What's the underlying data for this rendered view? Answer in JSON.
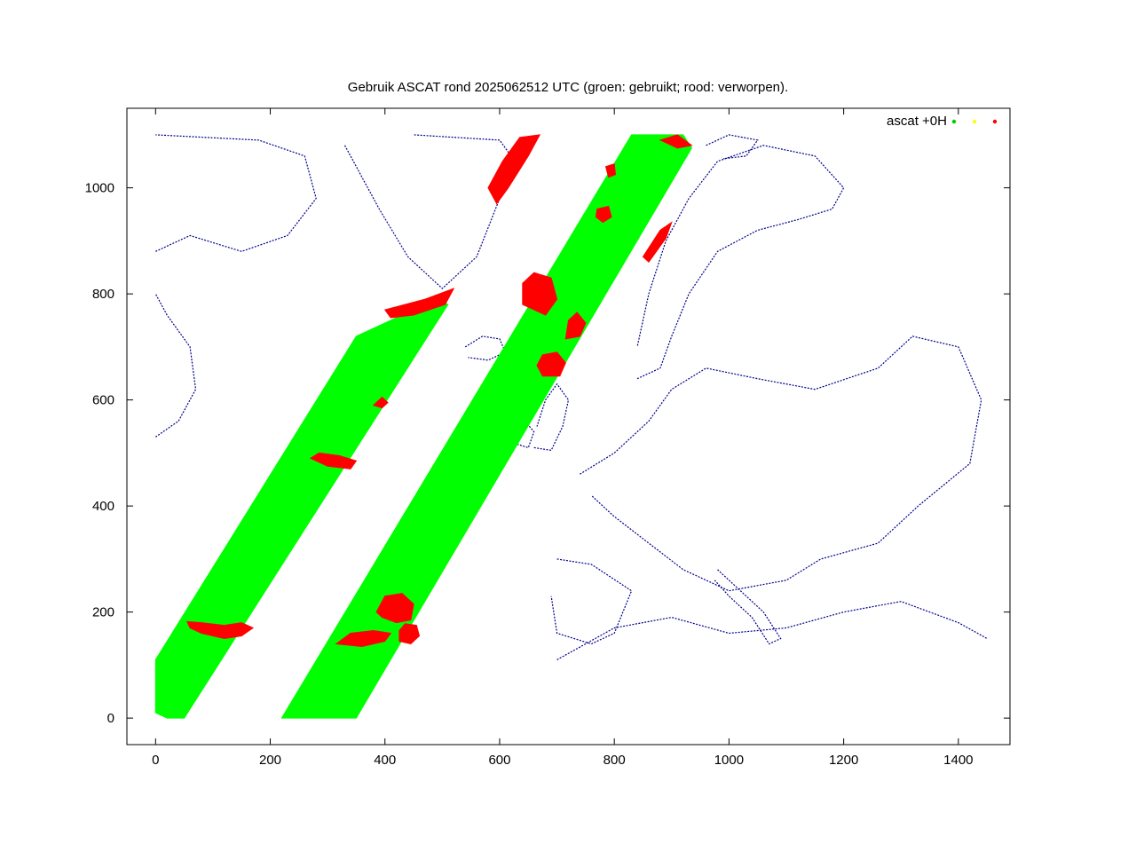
{
  "chart_data": {
    "type": "scatter",
    "title": "Gebruik ASCAT rond 2025062512 UTC (groen: gebruikt; rood: verworpen).",
    "xlabel": "",
    "ylabel": "",
    "xlim": [
      -50,
      1490
    ],
    "ylim": [
      -50,
      1150
    ],
    "x_ticks": [
      0,
      200,
      400,
      600,
      800,
      1000,
      1200,
      1400
    ],
    "x_tick_labels": [
      "0",
      "200",
      "400",
      "600",
      "800",
      "1000",
      "1200",
      "1400"
    ],
    "y_ticks": [
      0,
      200,
      400,
      600,
      800,
      1000
    ],
    "y_tick_labels": [
      "0",
      "200",
      "400",
      "600",
      "800",
      "1000"
    ],
    "grid": false,
    "legend": {
      "position": "top-right",
      "label": "ascat +0H",
      "marker_colors": [
        "#00cc00",
        "#ffff00",
        "#ff0000"
      ]
    },
    "colors": {
      "used": "#00ff00",
      "rejected": "#ff0000",
      "coastline": "#00008b",
      "frame": "#000000"
    },
    "series": [
      {
        "name": "ascat +0H",
        "swaths": [
          {
            "status": "used",
            "polygon": [
              [
                0,
                10
              ],
              [
                20,
                0
              ],
              [
                50,
                0
              ],
              [
                510,
                780
              ],
              [
                490,
                790
              ],
              [
                350,
                720
              ],
              [
                0,
                110
              ]
            ]
          },
          {
            "status": "used",
            "polygon": [
              [
                220,
                0
              ],
              [
                350,
                0
              ],
              [
                935,
                1075
              ],
              [
                920,
                1100
              ],
              [
                830,
                1100
              ],
              [
                220,
                0
              ]
            ]
          }
        ],
        "rejected_regions": [
          {
            "polygon": [
              [
                60,
                170
              ],
              [
                80,
                160
              ],
              [
                120,
                150
              ],
              [
                150,
                155
              ],
              [
                170,
                170
              ],
              [
                150,
                180
              ],
              [
                120,
                175
              ],
              [
                80,
                180
              ],
              [
                55,
                182
              ]
            ]
          },
          {
            "polygon": [
              [
                270,
                490
              ],
              [
                300,
                475
              ],
              [
                340,
                470
              ],
              [
                350,
                485
              ],
              [
                320,
                495
              ],
              [
                285,
                500
              ]
            ]
          },
          {
            "polygon": [
              [
                315,
                140
              ],
              [
                360,
                135
              ],
              [
                400,
                145
              ],
              [
                410,
                160
              ],
              [
                380,
                165
              ],
              [
                340,
                160
              ]
            ]
          },
          {
            "polygon": [
              [
                385,
                200
              ],
              [
                400,
                230
              ],
              [
                430,
                235
              ],
              [
                450,
                215
              ],
              [
                445,
                185
              ],
              [
                420,
                180
              ],
              [
                395,
                190
              ]
            ]
          },
          {
            "polygon": [
              [
                425,
                145
              ],
              [
                445,
                140
              ],
              [
                460,
                155
              ],
              [
                455,
                175
              ],
              [
                435,
                178
              ],
              [
                425,
                165
              ]
            ]
          },
          {
            "polygon": [
              [
                640,
                780
              ],
              [
                680,
                760
              ],
              [
                700,
                790
              ],
              [
                690,
                830
              ],
              [
                660,
                840
              ],
              [
                640,
                820
              ]
            ]
          },
          {
            "polygon": [
              [
                715,
                715
              ],
              [
                740,
                720
              ],
              [
                750,
                745
              ],
              [
                735,
                765
              ],
              [
                720,
                750
              ]
            ]
          },
          {
            "polygon": [
              [
                675,
                645
              ],
              [
                705,
                645
              ],
              [
                715,
                670
              ],
              [
                700,
                690
              ],
              [
                675,
                685
              ],
              [
                665,
                665
              ]
            ]
          },
          {
            "polygon": [
              [
                580,
                1000
              ],
              [
                605,
                1050
              ],
              [
                635,
                1095
              ],
              [
                670,
                1100
              ],
              [
                650,
                1060
              ],
              [
                615,
                1000
              ],
              [
                595,
                970
              ]
            ]
          },
          {
            "polygon": [
              [
                400,
                770
              ],
              [
                470,
                790
              ],
              [
                520,
                810
              ],
              [
                505,
                780
              ],
              [
                450,
                760
              ],
              [
                410,
                755
              ]
            ]
          },
          {
            "polygon": [
              [
                380,
                590
              ],
              [
                395,
                605
              ],
              [
                405,
                595
              ],
              [
                395,
                585
              ]
            ]
          },
          {
            "polygon": [
              [
                770,
                960
              ],
              [
                790,
                965
              ],
              [
                795,
                945
              ],
              [
                780,
                935
              ],
              [
                768,
                945
              ]
            ]
          },
          {
            "polygon": [
              [
                785,
                1040
              ],
              [
                800,
                1045
              ],
              [
                802,
                1025
              ],
              [
                790,
                1020
              ]
            ]
          },
          {
            "polygon": [
              [
                850,
                870
              ],
              [
                880,
                920
              ],
              [
                900,
                935
              ],
              [
                890,
                905
              ],
              [
                860,
                860
              ]
            ]
          },
          {
            "polygon": [
              [
                880,
                1090
              ],
              [
                910,
                1100
              ],
              [
                935,
                1080
              ],
              [
                910,
                1075
              ]
            ]
          }
        ]
      }
    ],
    "coastlines": [
      {
        "name": "greenland",
        "points": [
          [
            330,
            1080
          ],
          [
            360,
            1020
          ],
          [
            390,
            960
          ],
          [
            440,
            870
          ],
          [
            500,
            810
          ],
          [
            560,
            870
          ],
          [
            600,
            980
          ],
          [
            620,
            1060
          ],
          [
            600,
            1090
          ],
          [
            450,
            1100
          ]
        ]
      },
      {
        "name": "canada-west",
        "points": [
          [
            0,
            530
          ],
          [
            40,
            560
          ],
          [
            70,
            620
          ],
          [
            60,
            700
          ],
          [
            20,
            760
          ],
          [
            0,
            800
          ]
        ]
      },
      {
        "name": "baffin",
        "points": [
          [
            0,
            880
          ],
          [
            60,
            910
          ],
          [
            150,
            880
          ],
          [
            230,
            910
          ],
          [
            280,
            980
          ],
          [
            260,
            1060
          ],
          [
            180,
            1090
          ],
          [
            0,
            1100
          ]
        ]
      },
      {
        "name": "iceland",
        "points": [
          [
            540,
            700
          ],
          [
            570,
            720
          ],
          [
            600,
            715
          ],
          [
            610,
            690
          ],
          [
            580,
            675
          ],
          [
            545,
            680
          ]
        ]
      },
      {
        "name": "scandinavia",
        "points": [
          [
            840,
            640
          ],
          [
            880,
            660
          ],
          [
            900,
            720
          ],
          [
            930,
            800
          ],
          [
            980,
            880
          ],
          [
            1050,
            920
          ],
          [
            1120,
            940
          ],
          [
            1180,
            960
          ],
          [
            1200,
            1000
          ],
          [
            1150,
            1060
          ],
          [
            1060,
            1080
          ],
          [
            980,
            1050
          ],
          [
            930,
            980
          ],
          [
            890,
            900
          ],
          [
            860,
            800
          ],
          [
            840,
            700
          ]
        ]
      },
      {
        "name": "british-isles",
        "points": [
          [
            660,
            510
          ],
          [
            690,
            505
          ],
          [
            710,
            550
          ],
          [
            720,
            600
          ],
          [
            700,
            630
          ],
          [
            680,
            600
          ],
          [
            665,
            550
          ]
        ]
      },
      {
        "name": "ireland",
        "points": [
          [
            620,
            520
          ],
          [
            650,
            510
          ],
          [
            660,
            540
          ],
          [
            640,
            565
          ],
          [
            615,
            555
          ]
        ]
      },
      {
        "name": "europe-mainland",
        "points": [
          [
            740,
            460
          ],
          [
            800,
            500
          ],
          [
            860,
            560
          ],
          [
            900,
            620
          ],
          [
            960,
            660
          ],
          [
            1050,
            640
          ],
          [
            1150,
            620
          ],
          [
            1260,
            660
          ],
          [
            1320,
            720
          ],
          [
            1400,
            700
          ],
          [
            1440,
            600
          ],
          [
            1420,
            480
          ],
          [
            1330,
            400
          ],
          [
            1260,
            330
          ],
          [
            1160,
            300
          ],
          [
            1100,
            260
          ],
          [
            1000,
            240
          ],
          [
            920,
            280
          ],
          [
            860,
            330
          ],
          [
            800,
            380
          ],
          [
            760,
            420
          ]
        ]
      },
      {
        "name": "iberia",
        "points": [
          [
            700,
            300
          ],
          [
            760,
            290
          ],
          [
            830,
            240
          ],
          [
            800,
            160
          ],
          [
            760,
            140
          ],
          [
            700,
            160
          ],
          [
            690,
            230
          ]
        ]
      },
      {
        "name": "italy",
        "points": [
          [
            980,
            280
          ],
          [
            1020,
            240
          ],
          [
            1060,
            200
          ],
          [
            1090,
            150
          ],
          [
            1070,
            140
          ],
          [
            1040,
            190
          ],
          [
            1000,
            230
          ],
          [
            975,
            260
          ]
        ]
      },
      {
        "name": "north-africa",
        "points": [
          [
            700,
            110
          ],
          [
            800,
            170
          ],
          [
            900,
            190
          ],
          [
            1000,
            160
          ],
          [
            1100,
            170
          ],
          [
            1200,
            200
          ],
          [
            1300,
            220
          ],
          [
            1400,
            180
          ],
          [
            1450,
            150
          ]
        ]
      },
      {
        "name": "svalbard",
        "points": [
          [
            960,
            1080
          ],
          [
            1000,
            1100
          ],
          [
            1050,
            1090
          ],
          [
            1030,
            1060
          ],
          [
            990,
            1055
          ]
        ]
      }
    ]
  }
}
